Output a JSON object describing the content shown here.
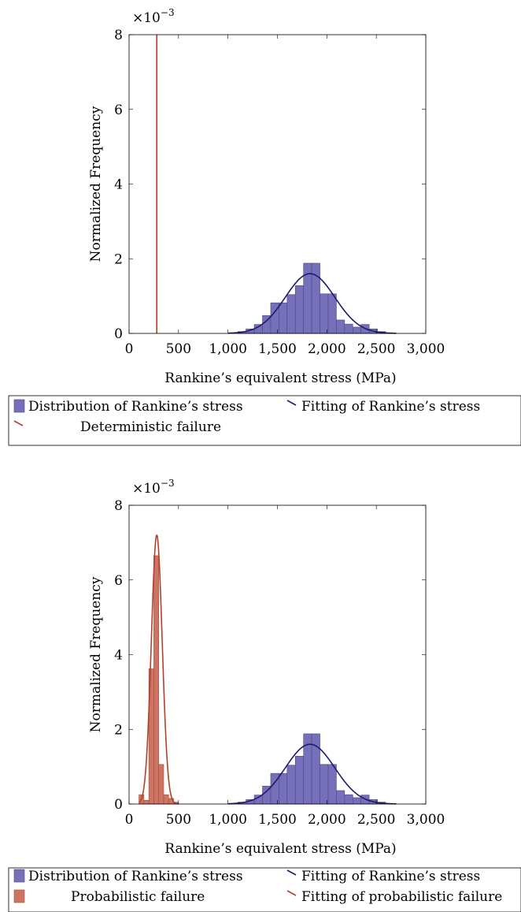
{
  "colors": {
    "rankine_bar": "#7570b8",
    "rankine_bar_edge": "#4a4590",
    "rankine_fit": "#1f1a6e",
    "failure": "#b5402a",
    "failure_bar": "#cd7565",
    "failure_bar_edge": "#a84a38"
  },
  "chart_data": [
    {
      "type": "bar",
      "exponent_label": "×10",
      "exponent_power": "−3",
      "xlabel": "Rankine’s equivalent stress (MPa)",
      "ylabel": "Normalized Frequency",
      "xlim": [
        0,
        3000
      ],
      "ylim": [
        0,
        8
      ],
      "y_scale": 0.001,
      "x_ticks": [
        0,
        500,
        1000,
        1500,
        2000,
        2500,
        3000
      ],
      "x_tick_labels": [
        "0",
        "500",
        "1,000",
        "1,500",
        "2,000",
        "2,500",
        "3,000"
      ],
      "y_ticks": [
        0,
        2,
        4,
        6,
        8
      ],
      "y_tick_labels": [
        "0",
        "2",
        "4",
        "6",
        "8"
      ],
      "grid": false,
      "legend_placement": "below",
      "histograms": [
        {
          "name": "Distribution of Rankine’s stress",
          "bin_width": 83,
          "bin_starts": [
            1100,
            1183,
            1266,
            1349,
            1432,
            1515,
            1598,
            1681,
            1764,
            1847,
            1930,
            2013,
            2096,
            2179,
            2262,
            2345,
            2428,
            2511
          ],
          "values": [
            0.05,
            0.12,
            0.24,
            0.48,
            0.82,
            0.82,
            1.04,
            1.28,
            1.88,
            1.88,
            1.06,
            1.06,
            0.36,
            0.25,
            0.17,
            0.24,
            0.12,
            0.05
          ]
        }
      ],
      "curves": [
        {
          "name": "Fitting of Rankine’s stress",
          "kind": "normal",
          "mean": 1830,
          "peak": 1.6,
          "sigma": 250,
          "x_range": [
            1000,
            2700
          ]
        }
      ],
      "vertical_lines": [
        {
          "name": "Deterministic failure",
          "x": 280
        }
      ],
      "legend": [
        {
          "label": "Distribution of Rankine’s stress",
          "swatch": "bar",
          "color": "rankine_bar"
        },
        {
          "label": "Fitting of Rankine’s stress",
          "swatch": "line",
          "color": "rankine_fit"
        },
        {
          "label": "Deterministic failure",
          "swatch": "line",
          "color": "failure"
        }
      ]
    },
    {
      "type": "bar",
      "exponent_label": "×10",
      "exponent_power": "−3",
      "xlabel": "Rankine’s equivalent stress (MPa)",
      "ylabel": "Normalized Frequency",
      "xlim": [
        0,
        3000
      ],
      "ylim": [
        0,
        8
      ],
      "y_scale": 0.001,
      "x_ticks": [
        0,
        500,
        1000,
        1500,
        2000,
        2500,
        3000
      ],
      "x_tick_labels": [
        "0",
        "500",
        "1,000",
        "1,500",
        "2,000",
        "2,500",
        "3,000"
      ],
      "y_ticks": [
        0,
        2,
        4,
        6,
        8
      ],
      "y_tick_labels": [
        "0",
        "2",
        "4",
        "6",
        "8"
      ],
      "grid": false,
      "legend_placement": "below",
      "histograms": [
        {
          "name": "Distribution of Rankine’s stress",
          "bin_width": 83,
          "bin_starts": [
            1100,
            1183,
            1266,
            1349,
            1432,
            1515,
            1598,
            1681,
            1764,
            1847,
            1930,
            2013,
            2096,
            2179,
            2262,
            2345,
            2428,
            2511
          ],
          "values": [
            0.05,
            0.12,
            0.24,
            0.48,
            0.82,
            0.82,
            1.04,
            1.28,
            1.88,
            1.88,
            1.06,
            1.06,
            0.36,
            0.25,
            0.17,
            0.24,
            0.12,
            0.05
          ]
        },
        {
          "name": "Probabilistic failure",
          "bin_width": 50,
          "bin_starts": [
            100,
            150,
            200,
            250,
            300,
            350,
            400,
            450
          ],
          "values": [
            0.25,
            0.1,
            3.62,
            6.65,
            1.06,
            0.25,
            0.15,
            0.05
          ]
        }
      ],
      "curves": [
        {
          "name": "Fitting of Rankine’s stress",
          "kind": "normal",
          "mean": 1830,
          "peak": 1.6,
          "sigma": 250,
          "x_range": [
            1000,
            2700
          ]
        },
        {
          "name": "Fitting of probabilistic failure",
          "kind": "normal",
          "mean": 280,
          "peak": 7.2,
          "sigma": 55,
          "x_range": [
            100,
            500
          ]
        }
      ],
      "vertical_lines": [],
      "legend": [
        {
          "label": "Distribution of Rankine’s stress",
          "swatch": "bar",
          "color": "rankine_bar"
        },
        {
          "label": "Fitting of Rankine’s stress",
          "swatch": "line",
          "color": "rankine_fit"
        },
        {
          "label": "Probabilistic failure",
          "swatch": "bar",
          "color": "failure_bar"
        },
        {
          "label": "Fitting of probabilistic failure",
          "swatch": "line",
          "color": "failure"
        }
      ]
    }
  ]
}
